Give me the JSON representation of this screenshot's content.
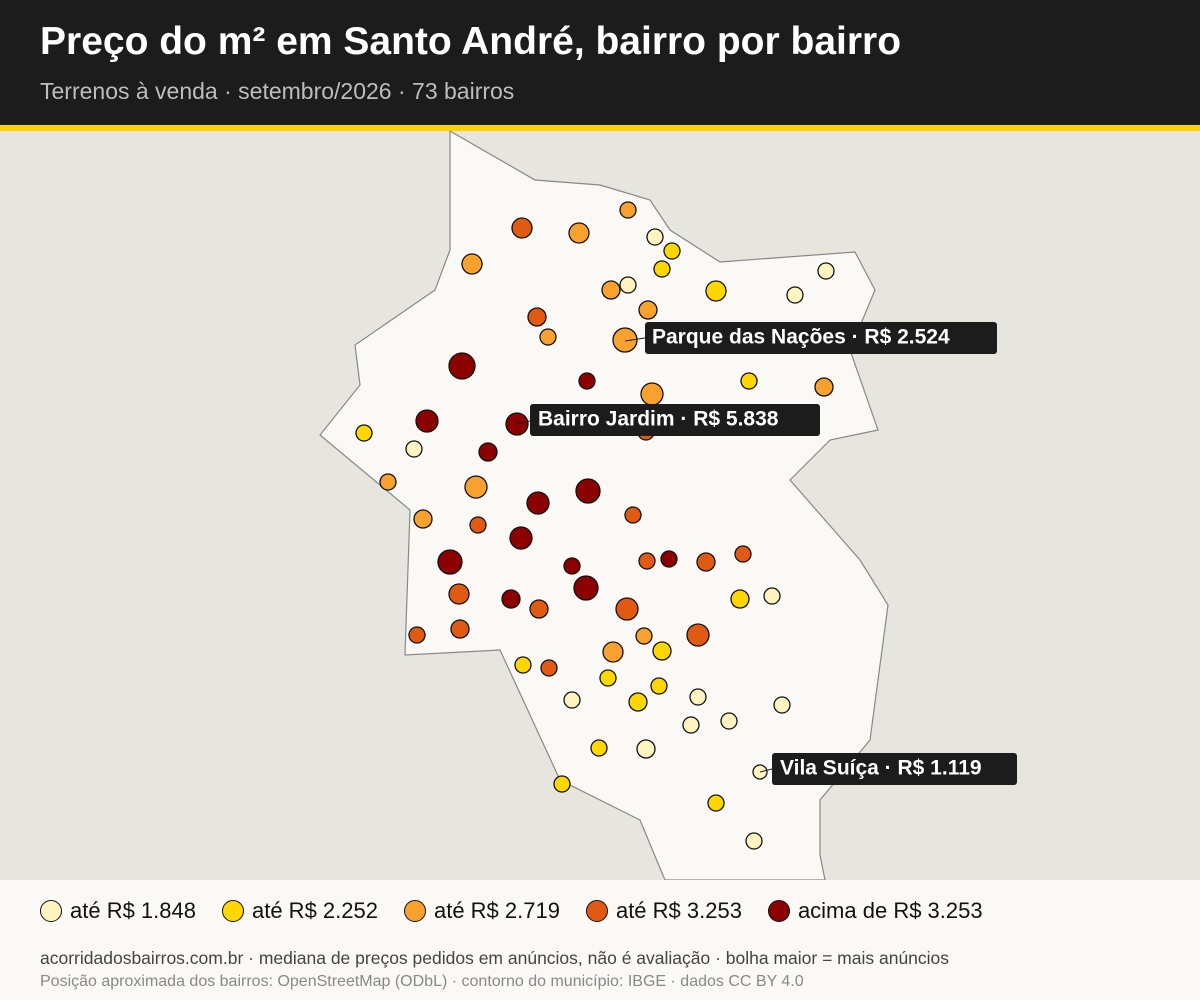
{
  "header": {
    "title": "Preço do m² em Santo André, bairro por bairro",
    "subtitle": "Terrenos à venda · setembro/2026 · 73 bairros"
  },
  "legend": {
    "items": [
      {
        "label": "até R$ 1.848",
        "color": "#fff3c0"
      },
      {
        "label": "até R$ 2.252",
        "color": "#ffd700"
      },
      {
        "label": "até R$ 2.719",
        "color": "#f9a12e"
      },
      {
        "label": "até R$ 3.253",
        "color": "#e05a14"
      },
      {
        "label": "acima de R$ 3.253",
        "color": "#8b0000"
      }
    ]
  },
  "callouts": [
    {
      "text": "Parque das Nações · R$ 2.524"
    },
    {
      "text": "Bairro Jardim · R$ 5.838"
    },
    {
      "text": "Vila Suíça · R$ 1.119"
    }
  ],
  "footer": {
    "lines": [
      "acorridadosbairros.com.br · mediana de preços pedidos em anúncios, não é avaliação · bolha maior = mais anúncios",
      "Posição aproximada dos bairros: OpenStreetMap (ODbL) · contorno do município: IBGE · dados CC BY 4.0"
    ]
  }
}
